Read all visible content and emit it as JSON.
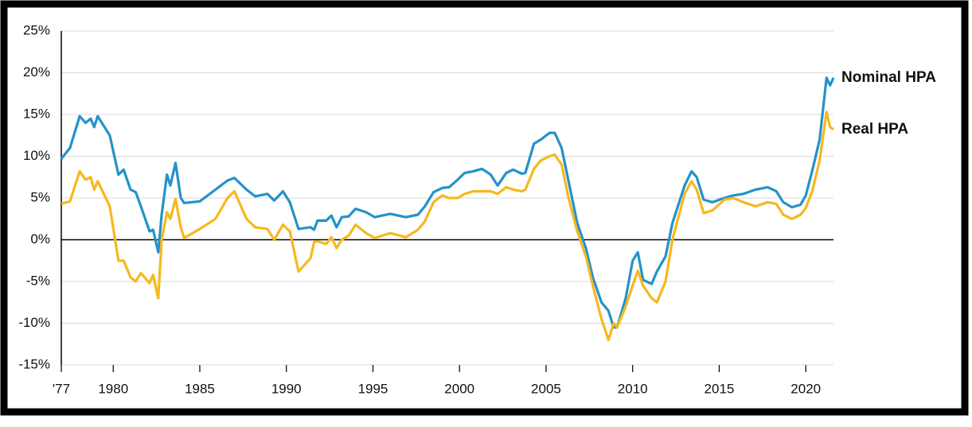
{
  "chart_data": {
    "type": "line",
    "x": [
      1977.0,
      1977.5,
      1978.06,
      1978.4,
      1978.7,
      1978.9,
      1979.1,
      1979.8,
      1980.3,
      1980.6,
      1981.0,
      1981.3,
      1981.6,
      1982.1,
      1982.3,
      1982.6,
      1982.8,
      1983.1,
      1983.3,
      1983.6,
      1983.9,
      1984.1,
      1985.0,
      1985.9,
      1986.6,
      1987.0,
      1987.7,
      1988.2,
      1988.9,
      1989.3,
      1989.8,
      1990.2,
      1990.7,
      1991.4,
      1991.6,
      1991.8,
      1992.3,
      1992.6,
      1992.9,
      1993.2,
      1993.6,
      1994.0,
      1994.6,
      1995.1,
      1996.0,
      1996.9,
      1997.6,
      1998.0,
      1998.5,
      1999.0,
      1999.4,
      1999.9,
      2000.3,
      2000.8,
      2001.3,
      2001.8,
      2002.2,
      2002.7,
      2003.1,
      2003.6,
      2003.8,
      2004.3,
      2004.7,
      2005.2,
      2005.5,
      2005.9,
      2006.3,
      2006.8,
      2007.3,
      2007.7,
      2008.2,
      2008.6,
      2008.9,
      2009.1,
      2009.6,
      2010.0,
      2010.3,
      2010.6,
      2011.1,
      2011.4,
      2011.9,
      2012.3,
      2013.0,
      2013.4,
      2013.7,
      2014.1,
      2014.6,
      2015.3,
      2015.8,
      2016.4,
      2017.1,
      2017.8,
      2018.3,
      2018.7,
      2019.2,
      2019.7,
      2020.0,
      2020.4,
      2020.8,
      2021.2,
      2021.4,
      2021.6
    ],
    "series": [
      {
        "name": "Nominal HPA",
        "color": "#2492c9",
        "values": [
          9.7,
          11,
          14.8,
          14,
          14.5,
          13.5,
          14.8,
          12.5,
          7.8,
          8.4,
          6,
          5.7,
          4,
          1,
          1.2,
          -1.5,
          3,
          7.8,
          6.5,
          9.2,
          5,
          4.4,
          4.6,
          6,
          7.1,
          7.4,
          6,
          5.2,
          5.5,
          4.7,
          5.8,
          4.5,
          1.3,
          1.5,
          1.2,
          2.3,
          2.3,
          2.9,
          1.5,
          2.7,
          2.8,
          3.7,
          3.3,
          2.7,
          3.1,
          2.7,
          3,
          4,
          5.7,
          6.2,
          6.3,
          7.2,
          8,
          8.2,
          8.5,
          7.8,
          6.5,
          8,
          8.4,
          7.9,
          8,
          11.5,
          12,
          12.8,
          12.8,
          11,
          7,
          2,
          -1,
          -4.5,
          -7.5,
          -8.5,
          -10.5,
          -10.5,
          -7,
          -2.5,
          -1.5,
          -4.8,
          -5.3,
          -3.8,
          -2,
          2,
          6.5,
          8.2,
          7.5,
          4.8,
          4.5,
          5,
          5.3,
          5.5,
          6,
          6.3,
          5.8,
          4.5,
          3.9,
          4.2,
          5.3,
          8.5,
          12,
          19.4,
          18.5,
          19.4
        ]
      },
      {
        "name": "Real HPA",
        "color": "#f6b81e",
        "values": [
          4.3,
          4.6,
          8.2,
          7.2,
          7.5,
          6,
          7,
          4,
          -2.5,
          -2.5,
          -4.5,
          -5,
          -4,
          -5.2,
          -4.2,
          -7,
          0,
          3.3,
          2.5,
          4.9,
          1.5,
          0.2,
          1.3,
          2.5,
          5,
          5.8,
          2.5,
          1.5,
          1.3,
          0,
          1.8,
          1,
          -3.8,
          -2.2,
          -0.3,
          -0.2,
          -0.5,
          0.3,
          -1,
          0,
          0.5,
          1.8,
          0.8,
          0.2,
          0.8,
          0.3,
          1.2,
          2.2,
          4.5,
          5.3,
          5,
          5,
          5.5,
          5.8,
          5.8,
          5.8,
          5.5,
          6.3,
          6,
          5.8,
          6,
          8.5,
          9.5,
          10,
          10.2,
          9,
          5,
          1,
          -2,
          -5.5,
          -9.5,
          -12,
          -10,
          -10.5,
          -8,
          -5.5,
          -3.7,
          -5.5,
          -7,
          -7.5,
          -5,
          0,
          5.5,
          7,
          6,
          3.2,
          3.5,
          4.8,
          5,
          4.5,
          4,
          4.5,
          4.3,
          3,
          2.5,
          3,
          3.8,
          6,
          9.5,
          15.3,
          13.5,
          13.2
        ]
      }
    ],
    "xlim": [
      1977,
      2021.6
    ],
    "xticks": [
      {
        "value": 1977,
        "label": "'77"
      },
      1980,
      1985,
      1990,
      1995,
      2000,
      2005,
      2010,
      2015,
      2020
    ],
    "ylim": [
      -15,
      25
    ],
    "yticks": [
      {
        "value": -15,
        "label": "-15%"
      },
      {
        "value": -10,
        "label": "-10%"
      },
      {
        "value": -5,
        "label": "-5%"
      },
      {
        "value": 0,
        "label": "0%"
      },
      {
        "value": 5,
        "label": "5%"
      },
      {
        "value": 10,
        "label": "10%"
      },
      {
        "value": 15,
        "label": "15%"
      },
      {
        "value": 20,
        "label": "20%"
      },
      {
        "value": 25,
        "label": "25%"
      }
    ],
    "grid": true
  }
}
